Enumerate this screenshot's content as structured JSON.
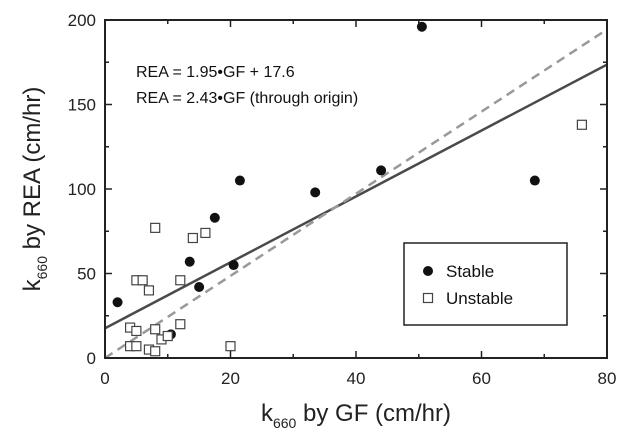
{
  "chart_data": {
    "type": "scatter",
    "xlabel": {
      "main": "k",
      "sub": "660",
      "rest": " by GF (cm/hr)"
    },
    "ylabel": {
      "main": "k",
      "sub": "660",
      "rest": " by REA (cm/hr)"
    },
    "xlim": [
      0,
      80
    ],
    "ylim": [
      0,
      200
    ],
    "xticks": [
      0,
      20,
      40,
      60,
      80
    ],
    "yticks": [
      0,
      50,
      100,
      150,
      200
    ],
    "annotations": [
      "REA = 1.95•GF + 17.6",
      "REA = 2.43•GF (through origin)"
    ],
    "legend": {
      "position": "bottom-right",
      "entries": [
        "Stable",
        "Unstable"
      ]
    },
    "series": [
      {
        "name": "Stable",
        "marker": "filled-circle",
        "color": "#111111",
        "points": [
          [
            2,
            33
          ],
          [
            10.5,
            14
          ],
          [
            13.5,
            57
          ],
          [
            15,
            42
          ],
          [
            17.5,
            83
          ],
          [
            20.5,
            55
          ],
          [
            21.5,
            105
          ],
          [
            33.5,
            98
          ],
          [
            44,
            111
          ],
          [
            50.5,
            196
          ],
          [
            68.5,
            105
          ]
        ]
      },
      {
        "name": "Unstable",
        "marker": "open-square",
        "color": "#444444",
        "points": [
          [
            4,
            7
          ],
          [
            4,
            18
          ],
          [
            5,
            7
          ],
          [
            5,
            16
          ],
          [
            5,
            46
          ],
          [
            6,
            46
          ],
          [
            7,
            40
          ],
          [
            7,
            5
          ],
          [
            8,
            4
          ],
          [
            8,
            17
          ],
          [
            8,
            77
          ],
          [
            9,
            11
          ],
          [
            10,
            13
          ],
          [
            12,
            20
          ],
          [
            12,
            46
          ],
          [
            14,
            71
          ],
          [
            16,
            74
          ],
          [
            20,
            7
          ],
          [
            76,
            138
          ]
        ]
      }
    ],
    "fit_lines": [
      {
        "label": "REA = 1.95•GF + 17.6",
        "slope": 1.95,
        "intercept": 17.6,
        "style": "solid",
        "color": "#4a4a4a"
      },
      {
        "label": "REA = 2.43•GF (through origin)",
        "slope": 2.43,
        "intercept": 0,
        "style": "dashed",
        "color": "#999999"
      }
    ]
  }
}
